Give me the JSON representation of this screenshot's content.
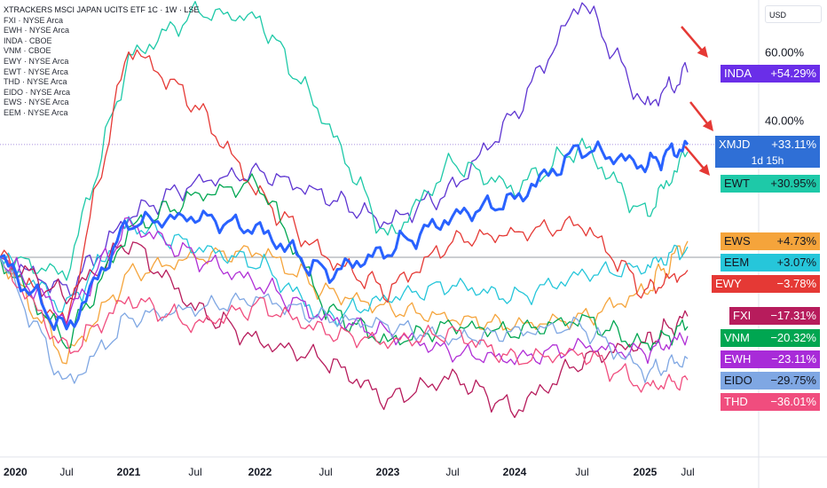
{
  "legend": {
    "title": "XTRACKERS MSCI JAPAN UCITS ETF 1C · 1W · LSE",
    "items": [
      "FXI · NYSE Arca",
      "EWH · NYSE Arca",
      "INDA · CBOE",
      "VNM · CBOE",
      "EWY · NYSE Arca",
      "EWT · NYSE Arca",
      "THD · NYSE Arca",
      "EIDO · NYSE Arca",
      "EWS · NYSE Arca",
      "EEM · NYSE Arca"
    ]
  },
  "currency_button": "USD",
  "colors": {
    "arrow": "#e53935",
    "axis_line": "#787b86",
    "dotted_line": "#8d6ed6"
  },
  "chart_data": {
    "type": "line",
    "x": [
      "2020-01",
      "2020-07",
      "2021-01",
      "2021-07",
      "2022-01",
      "2022-07",
      "2023-01",
      "2023-07",
      "2024-01",
      "2024-07",
      "2025-01",
      "2025-05"
    ],
    "x_tick_labels": [
      "2020",
      "Jul",
      "2021",
      "Jul",
      "2022",
      "Jul",
      "2023",
      "Jul",
      "2024",
      "Jul",
      "2025",
      "Jul"
    ],
    "y_tick_labels": [
      "60.00%",
      "40.00%"
    ],
    "ylim": [
      -50,
      80
    ],
    "series": [
      {
        "name": "XMJD",
        "color": "#2962ff",
        "values": [
          0,
          -22,
          10,
          12,
          8,
          -5,
          2,
          12,
          17,
          32,
          27,
          33.11
        ]
      },
      {
        "name": "INDA",
        "color": "#5e35d1",
        "values": [
          0,
          -10,
          12,
          22,
          25,
          18,
          10,
          20,
          42,
          76,
          44,
          54.29
        ]
      },
      {
        "name": "EWT",
        "color": "#1ec9a8",
        "values": [
          0,
          -5,
          58,
          72,
          70,
          40,
          5,
          28,
          20,
          33,
          12,
          30.95
        ]
      },
      {
        "name": "EWS",
        "color": "#f5a43b",
        "values": [
          0,
          -30,
          -5,
          0,
          2,
          -10,
          -15,
          -18,
          -20,
          -18,
          -10,
          4.73
        ]
      },
      {
        "name": "EEM",
        "color": "#26c6da",
        "values": [
          0,
          -15,
          10,
          3,
          -2,
          -18,
          -12,
          -8,
          -12,
          -5,
          -3,
          3.07
        ]
      },
      {
        "name": "EWY",
        "color": "#e53935",
        "values": [
          0,
          -20,
          62,
          45,
          18,
          0,
          -10,
          5,
          7,
          10,
          -10,
          -3.78
        ]
      },
      {
        "name": "FXI",
        "color": "#b71c5c",
        "values": [
          0,
          -12,
          5,
          -15,
          -25,
          -30,
          -42,
          -35,
          -45,
          -30,
          -25,
          -17.31
        ]
      },
      {
        "name": "VNM",
        "color": "#00a651",
        "values": [
          0,
          -25,
          8,
          18,
          22,
          -15,
          -25,
          -20,
          -22,
          -18,
          -26,
          -20.32
        ]
      },
      {
        "name": "EWH",
        "color": "#b02fd6",
        "values": [
          0,
          -18,
          10,
          0,
          -8,
          -18,
          -22,
          -28,
          -30,
          -26,
          -28,
          -23.11
        ]
      },
      {
        "name": "EIDO",
        "color": "#7fa7e3",
        "values": [
          0,
          -38,
          -18,
          -15,
          -12,
          -18,
          -20,
          -24,
          -22,
          -20,
          -34,
          -29.75
        ]
      },
      {
        "name": "THD",
        "color": "#f04d7e",
        "values": [
          0,
          -28,
          -12,
          -20,
          -14,
          -22,
          -25,
          -22,
          -30,
          -28,
          -38,
          -36.01
        ]
      }
    ],
    "labels": [
      {
        "symbol": "INDA",
        "value": "+54.29%",
        "color": "#6a2ee8"
      },
      {
        "symbol": "XMJD",
        "value": "+33.11%",
        "sub": "1d 15h",
        "color": "#2f6fd6"
      },
      {
        "symbol": "EWT",
        "value": "+30.95%",
        "color": "#1ec9a8",
        "dark": true
      },
      {
        "symbol": "EWS",
        "value": "+4.73%",
        "color": "#f5a43b",
        "dark": true
      },
      {
        "symbol": "EEM",
        "value": "+3.07%",
        "color": "#26c6da",
        "dark": true
      },
      {
        "symbol": "EWY",
        "value": "−3.78%",
        "color": "#e53935"
      },
      {
        "symbol": "FXI",
        "value": "−17.31%",
        "color": "#b71c5c"
      },
      {
        "symbol": "VNM",
        "value": "−20.32%",
        "color": "#00a651"
      },
      {
        "symbol": "EWH",
        "value": "−23.11%",
        "color": "#a82bd8"
      },
      {
        "symbol": "EIDO",
        "value": "−29.75%",
        "color": "#7fa7e3",
        "dark": true
      },
      {
        "symbol": "THD",
        "value": "−36.01%",
        "color": "#f04d7e"
      }
    ]
  }
}
